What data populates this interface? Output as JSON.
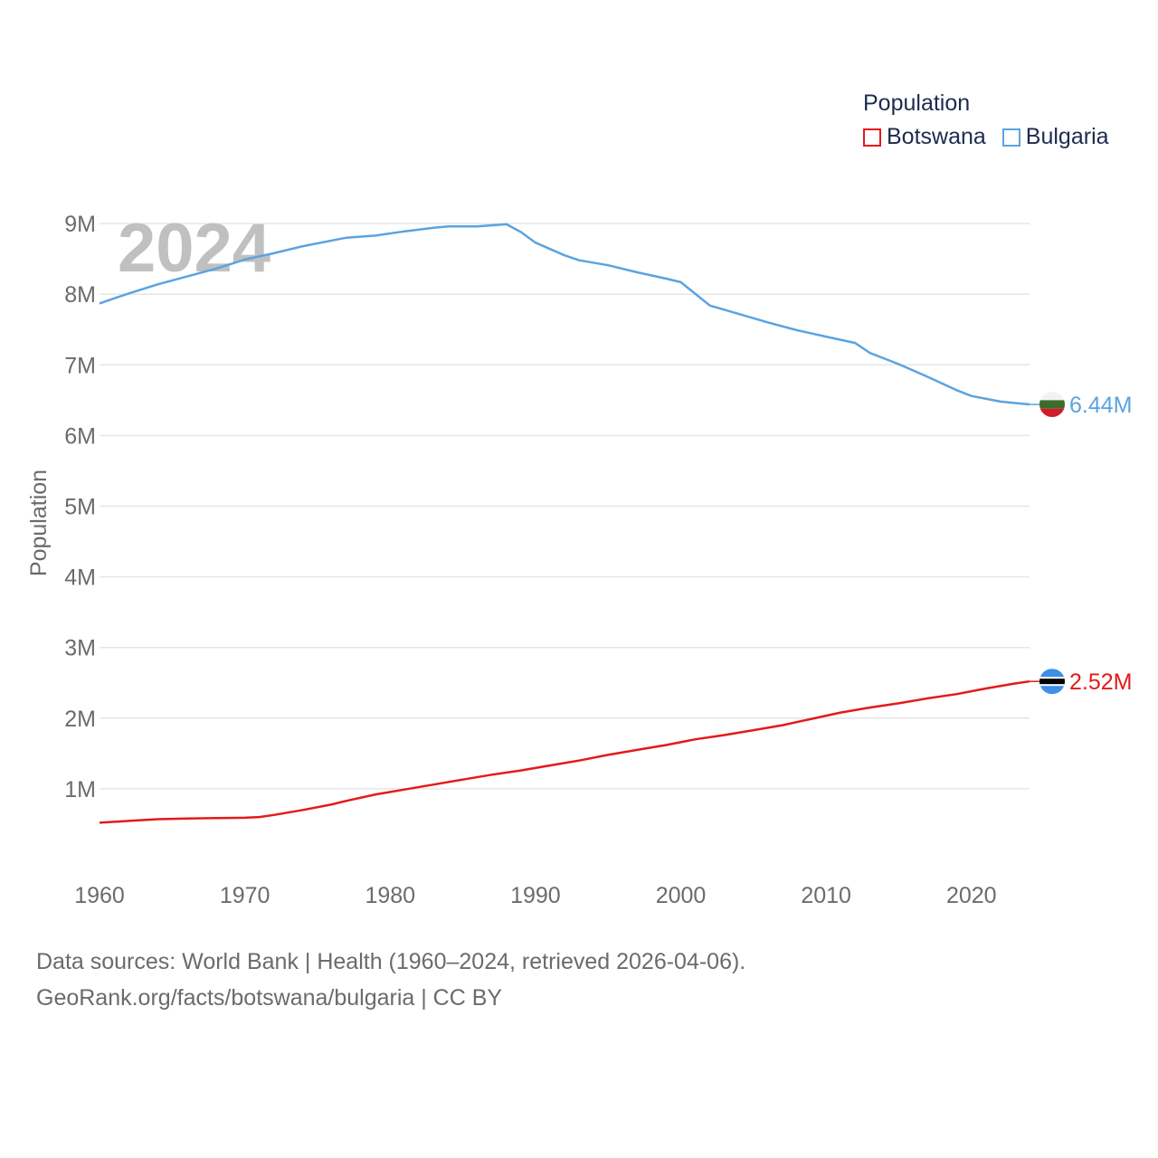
{
  "chart_data": {
    "type": "line",
    "title": "",
    "year_label": "2024",
    "xlabel": "",
    "ylabel": "Population",
    "xlim": [
      1960,
      2024
    ],
    "ylim": [
      0,
      10000000
    ],
    "y_ticks": [
      1000000,
      2000000,
      3000000,
      4000000,
      5000000,
      6000000,
      7000000,
      8000000,
      9000000
    ],
    "y_tick_labels": [
      "1M",
      "2M",
      "3M",
      "4M",
      "5M",
      "6M",
      "7M",
      "8M",
      "9M"
    ],
    "x_ticks": [
      1960,
      1970,
      1980,
      1990,
      2000,
      2010,
      2020
    ],
    "x_tick_labels": [
      "1960",
      "1970",
      "1980",
      "1990",
      "2000",
      "2010",
      "2020"
    ],
    "grid": true,
    "legend": {
      "title": "Population",
      "position": "top-right",
      "items": [
        {
          "name": "Botswana",
          "color": "#e31a1c"
        },
        {
          "name": "Bulgaria",
          "color": "#5ba3e0"
        }
      ]
    },
    "series": [
      {
        "name": "Botswana",
        "color": "#e31a1c",
        "end_label": "2.52M",
        "flag_icon": "botswana-flag-icon",
        "x": [
          1960,
          1962,
          1964,
          1966,
          1968,
          1970,
          1971,
          1972,
          1974,
          1976,
          1977,
          1979,
          1981,
          1983,
          1985,
          1987,
          1989,
          1991,
          1993,
          1995,
          1997,
          1999,
          2001,
          2003,
          2005,
          2007,
          2009,
          2011,
          2013,
          2015,
          2017,
          2019,
          2021,
          2023,
          2024
        ],
        "y": [
          520000,
          545000,
          570000,
          580000,
          585000,
          590000,
          600000,
          630000,
          700000,
          780000,
          830000,
          920000,
          990000,
          1060000,
          1130000,
          1200000,
          1260000,
          1330000,
          1400000,
          1480000,
          1550000,
          1620000,
          1700000,
          1760000,
          1830000,
          1900000,
          1990000,
          2080000,
          2150000,
          2210000,
          2280000,
          2340000,
          2420000,
          2490000,
          2520000
        ]
      },
      {
        "name": "Bulgaria",
        "color": "#5ba3e0",
        "end_label": "6.44M",
        "flag_icon": "bulgaria-flag-icon",
        "x": [
          1960,
          1962,
          1964,
          1966,
          1968,
          1970,
          1972,
          1974,
          1976,
          1977,
          1979,
          1981,
          1983,
          1984,
          1986,
          1988,
          1989,
          1990,
          1991,
          1992,
          1993,
          1995,
          1997,
          1999,
          2000,
          2002,
          2004,
          2006,
          2008,
          2010,
          2012,
          2013,
          2015,
          2017,
          2019,
          2020,
          2022,
          2023,
          2024
        ],
        "y": [
          7870000,
          8010000,
          8140000,
          8250000,
          8360000,
          8490000,
          8580000,
          8680000,
          8760000,
          8800000,
          8830000,
          8890000,
          8940000,
          8960000,
          8960000,
          8990000,
          8880000,
          8730000,
          8640000,
          8550000,
          8480000,
          8410000,
          8310000,
          8220000,
          8170000,
          7840000,
          7720000,
          7600000,
          7490000,
          7400000,
          7310000,
          7170000,
          7010000,
          6830000,
          6640000,
          6560000,
          6480000,
          6460000,
          6440000
        ]
      }
    ]
  },
  "footer": {
    "line1": "Data sources: World Bank | Health (1960–2024, retrieved 2026-04-06).",
    "line2": "GeoRank.org/facts/botswana/bulgaria | CC BY"
  }
}
